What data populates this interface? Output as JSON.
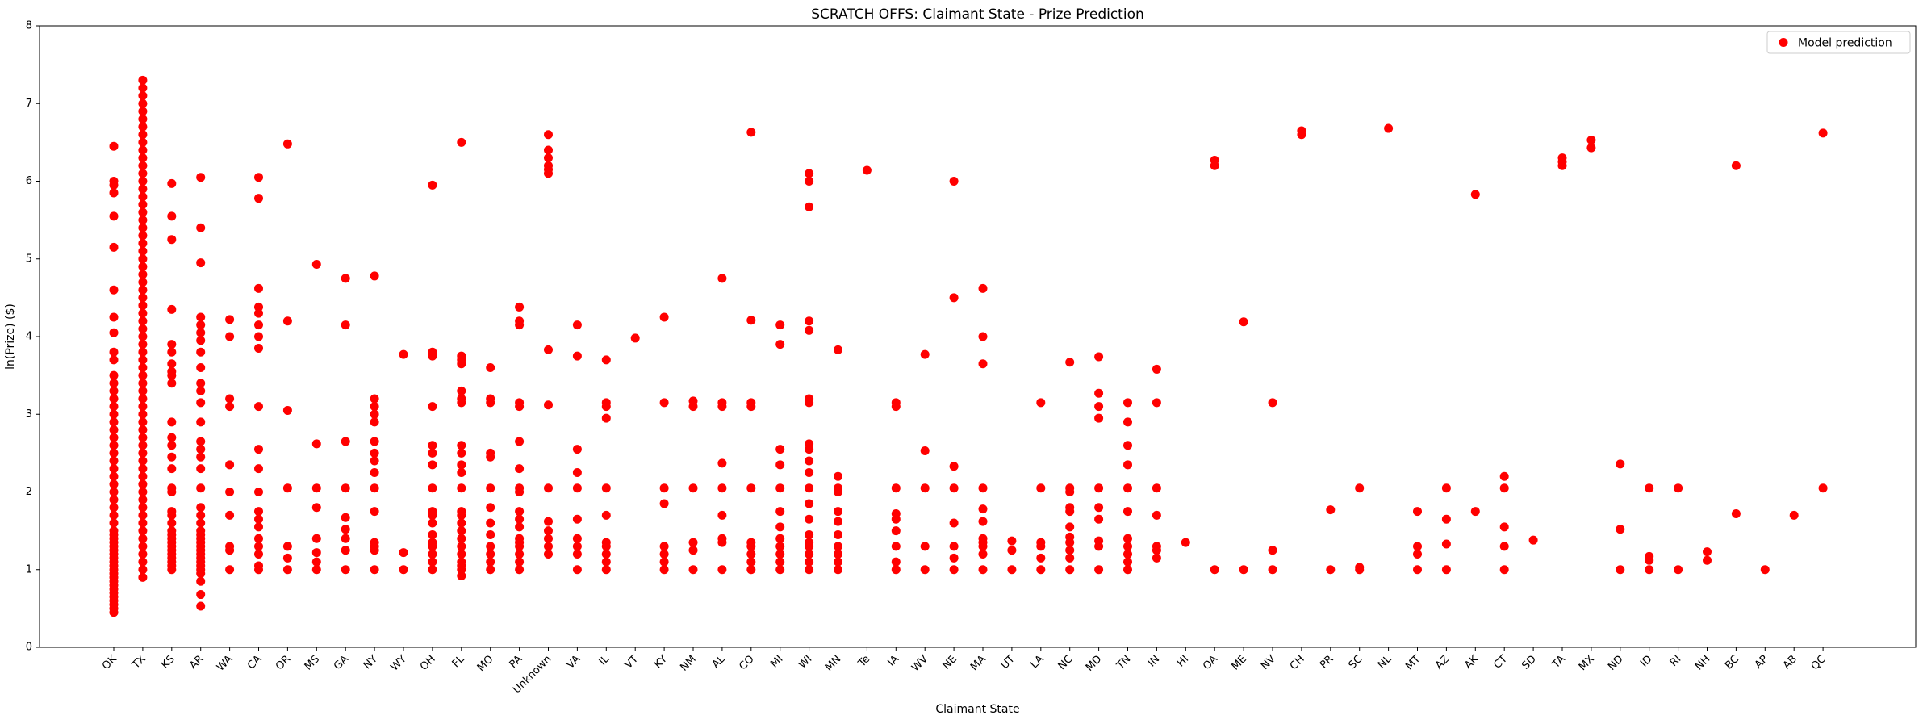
{
  "chart_data": {
    "type": "scatter",
    "title": "SCRATCH OFFS: Claimant State - Prize Prediction",
    "xlabel": "Claimant State",
    "ylabel": "ln(Prize) ($)",
    "ylim": [
      0,
      8
    ],
    "yticks": [
      0,
      1,
      2,
      3,
      4,
      5,
      6,
      7,
      8
    ],
    "grid": false,
    "legend_position": "top-right",
    "colors": {
      "marker": "#ff0000",
      "axis": "#000000",
      "background": "#ffffff"
    },
    "categories": [
      "OK",
      "TX",
      "KS",
      "AR",
      "WA",
      "CA",
      "OR",
      "MS",
      "GA",
      "NY",
      "WY",
      "OH",
      "FL",
      "MO",
      "PA",
      "Unknown",
      "VA",
      "IL",
      "VT",
      "KY",
      "NM",
      "AL",
      "CO",
      "MI",
      "WI",
      "MN",
      "Te",
      "IA",
      "WV",
      "NE",
      "MA",
      "UT",
      "LA",
      "NC",
      "MD",
      "TN",
      "IN",
      "HI",
      "OA",
      "ME",
      "NV",
      "CH",
      "PR",
      "SC",
      "NL",
      "MT",
      "AZ",
      "AK",
      "CT",
      "SD",
      "TA",
      "MX",
      "ND",
      "ID",
      "RI",
      "NH",
      "BC",
      "AP",
      "AB",
      "QC"
    ],
    "series": [
      {
        "name": "Model prediction",
        "points": {
          "OK": [
            0.45,
            0.5,
            0.55,
            0.6,
            0.65,
            0.7,
            0.75,
            0.8,
            0.85,
            0.9,
            0.95,
            1.0,
            1.05,
            1.1,
            1.15,
            1.2,
            1.25,
            1.3,
            1.35,
            1.4,
            1.45,
            1.5,
            1.6,
            1.7,
            1.8,
            1.9,
            2.0,
            2.1,
            2.2,
            2.3,
            2.4,
            2.5,
            2.6,
            2.7,
            2.8,
            2.9,
            3.0,
            3.1,
            3.2,
            3.3,
            3.4,
            3.5,
            3.7,
            3.8,
            4.05,
            4.25,
            4.6,
            5.15,
            5.55,
            5.85,
            5.95,
            6.0,
            6.45
          ],
          "TX": [
            0.9,
            1.0,
            1.1,
            1.2,
            1.3,
            1.4,
            1.5,
            1.6,
            1.7,
            1.8,
            1.9,
            2.0,
            2.1,
            2.2,
            2.3,
            2.4,
            2.5,
            2.6,
            2.7,
            2.8,
            2.9,
            3.0,
            3.1,
            3.2,
            3.3,
            3.4,
            3.5,
            3.6,
            3.7,
            3.8,
            3.9,
            4.0,
            4.1,
            4.2,
            4.3,
            4.4,
            4.5,
            4.6,
            4.7,
            4.8,
            4.9,
            5.0,
            5.1,
            5.2,
            5.3,
            5.4,
            5.5,
            5.6,
            5.7,
            5.8,
            5.9,
            6.0,
            6.1,
            6.2,
            6.3,
            6.4,
            6.5,
            6.6,
            6.7,
            6.8,
            6.9,
            7.0,
            7.1,
            7.2,
            7.3
          ],
          "KS": [
            1.0,
            1.05,
            1.1,
            1.15,
            1.2,
            1.25,
            1.3,
            1.35,
            1.4,
            1.45,
            1.5,
            1.6,
            1.7,
            1.75,
            2.0,
            2.05,
            2.3,
            2.45,
            2.6,
            2.7,
            2.9,
            3.4,
            3.5,
            3.55,
            3.65,
            3.8,
            3.9,
            4.35,
            5.25,
            5.55,
            5.97
          ],
          "AR": [
            0.53,
            0.68,
            0.85,
            0.95,
            1.0,
            1.05,
            1.1,
            1.15,
            1.2,
            1.25,
            1.3,
            1.35,
            1.4,
            1.45,
            1.5,
            1.6,
            1.7,
            1.8,
            2.05,
            2.3,
            2.45,
            2.55,
            2.65,
            2.9,
            3.15,
            3.3,
            3.4,
            3.6,
            3.8,
            3.95,
            4.05,
            4.15,
            4.25,
            4.95,
            5.4,
            6.05
          ],
          "WA": [
            1.0,
            1.25,
            1.3,
            1.7,
            2.0,
            2.35,
            3.1,
            3.2,
            4.0,
            4.22
          ],
          "CA": [
            1.0,
            1.05,
            1.2,
            1.3,
            1.4,
            1.55,
            1.65,
            1.75,
            2.0,
            2.3,
            2.55,
            3.1,
            3.85,
            4.0,
            4.15,
            4.3,
            4.38,
            4.62,
            5.78,
            6.05
          ],
          "OR": [
            1.0,
            1.15,
            1.3,
            2.05,
            3.05,
            4.2,
            6.48
          ],
          "MS": [
            1.0,
            1.1,
            1.22,
            1.4,
            1.8,
            2.05,
            2.62,
            4.93
          ],
          "GA": [
            1.0,
            1.25,
            1.4,
            1.52,
            1.67,
            2.05,
            2.65,
            4.15,
            4.75
          ],
          "NY": [
            1.0,
            1.25,
            1.3,
            1.35,
            1.75,
            2.05,
            2.25,
            2.4,
            2.5,
            2.65,
            2.9,
            3.0,
            3.1,
            3.2,
            4.78
          ],
          "WY": [
            1.0,
            1.22,
            3.77
          ],
          "OH": [
            1.0,
            1.1,
            1.2,
            1.3,
            1.35,
            1.45,
            1.6,
            1.7,
            1.75,
            2.05,
            2.35,
            2.5,
            2.6,
            3.1,
            3.75,
            3.8,
            5.95
          ],
          "FL": [
            0.92,
            1.0,
            1.05,
            1.1,
            1.2,
            1.3,
            1.4,
            1.5,
            1.6,
            1.7,
            1.75,
            2.05,
            2.25,
            2.35,
            2.5,
            2.6,
            3.15,
            3.2,
            3.3,
            3.65,
            3.7,
            3.75,
            6.5
          ],
          "MO": [
            1.0,
            1.1,
            1.2,
            1.3,
            1.45,
            1.6,
            1.8,
            2.05,
            2.45,
            2.5,
            3.15,
            3.2,
            3.6
          ],
          "PA": [
            1.0,
            1.1,
            1.2,
            1.3,
            1.35,
            1.4,
            1.55,
            1.65,
            1.75,
            2.0,
            2.05,
            2.3,
            2.65,
            3.1,
            3.15,
            4.15,
            4.2,
            4.38
          ],
          "Unknown": [
            1.2,
            1.3,
            1.4,
            1.5,
            1.62,
            2.05,
            3.12,
            3.83,
            6.1,
            6.15,
            6.2,
            6.3,
            6.4,
            6.6
          ],
          "VA": [
            1.0,
            1.2,
            1.3,
            1.4,
            1.65,
            2.05,
            2.25,
            2.55,
            3.75,
            4.15
          ],
          "IL": [
            1.0,
            1.1,
            1.2,
            1.3,
            1.35,
            1.7,
            2.05,
            2.95,
            3.1,
            3.15,
            3.7
          ],
          "VT": [
            3.98
          ],
          "KY": [
            1.0,
            1.1,
            1.2,
            1.3,
            1.85,
            2.05,
            3.15,
            4.25
          ],
          "NM": [
            1.0,
            1.25,
            1.35,
            2.05,
            3.1,
            3.17
          ],
          "AL": [
            1.0,
            1.35,
            1.4,
            1.7,
            2.05,
            2.37,
            3.1,
            3.15,
            4.75
          ],
          "CO": [
            1.0,
            1.1,
            1.2,
            1.3,
            1.35,
            2.05,
            3.1,
            3.15,
            4.21,
            6.63
          ],
          "MI": [
            1.0,
            1.1,
            1.2,
            1.3,
            1.4,
            1.55,
            1.75,
            2.05,
            2.35,
            2.55,
            3.9,
            4.15
          ],
          "WI": [
            1.0,
            1.1,
            1.2,
            1.3,
            1.35,
            1.45,
            1.65,
            1.85,
            2.05,
            2.25,
            2.4,
            2.55,
            2.62,
            3.15,
            3.2,
            4.08,
            4.2,
            5.67,
            6.0,
            6.1
          ],
          "MN": [
            1.0,
            1.1,
            1.2,
            1.3,
            1.45,
            1.62,
            1.75,
            2.0,
            2.05,
            2.2,
            3.83
          ],
          "Te": [
            6.14
          ],
          "IA": [
            1.0,
            1.1,
            1.3,
            1.5,
            1.65,
            1.72,
            2.05,
            3.1,
            3.15
          ],
          "WV": [
            1.0,
            1.3,
            2.05,
            2.53,
            3.77
          ],
          "NE": [
            1.0,
            1.15,
            1.3,
            1.6,
            2.05,
            2.33,
            4.5,
            6.0
          ],
          "MA": [
            1.0,
            1.2,
            1.3,
            1.35,
            1.4,
            1.62,
            1.78,
            2.05,
            3.65,
            4.0,
            4.62
          ],
          "UT": [
            1.0,
            1.25,
            1.37
          ],
          "LA": [
            1.0,
            1.15,
            1.3,
            1.35,
            2.05,
            3.15
          ],
          "NC": [
            1.0,
            1.15,
            1.25,
            1.35,
            1.42,
            1.55,
            1.75,
            1.8,
            2.0,
            2.05,
            3.67
          ],
          "MD": [
            1.0,
            1.3,
            1.37,
            1.65,
            1.8,
            2.05,
            2.95,
            3.1,
            3.27,
            3.74
          ],
          "TN": [
            1.0,
            1.1,
            1.2,
            1.3,
            1.4,
            1.75,
            2.05,
            2.35,
            2.6,
            2.9,
            3.15
          ],
          "IN": [
            1.15,
            1.25,
            1.3,
            1.7,
            2.05,
            3.15,
            3.58
          ],
          "HI": [
            1.35
          ],
          "OA": [
            1.0,
            6.2,
            6.27
          ],
          "ME": [
            1.0,
            4.19
          ],
          "NV": [
            1.0,
            1.25,
            3.15
          ],
          "CH": [
            6.6,
            6.65
          ],
          "PR": [
            1.0,
            1.77
          ],
          "SC": [
            1.0,
            1.03,
            2.05
          ],
          "NL": [
            6.68
          ],
          "MT": [
            1.0,
            1.2,
            1.3,
            1.75
          ],
          "AZ": [
            1.0,
            1.33,
            1.65,
            2.05
          ],
          "AK": [
            1.75,
            5.83
          ],
          "CT": [
            1.0,
            1.3,
            1.55,
            2.05,
            2.2
          ],
          "SD": [
            1.38
          ],
          "TA": [
            6.2,
            6.25,
            6.3
          ],
          "MX": [
            6.43,
            6.53
          ],
          "ND": [
            1.0,
            1.52,
            2.36
          ],
          "ID": [
            1.0,
            1.12,
            1.17,
            2.05
          ],
          "RI": [
            1.0,
            2.05
          ],
          "NH": [
            1.12,
            1.23
          ],
          "BC": [
            1.72,
            6.2
          ],
          "AP": [
            1.0
          ],
          "AB": [
            1.7
          ],
          "QC": [
            2.05,
            6.62
          ]
        }
      }
    ]
  }
}
